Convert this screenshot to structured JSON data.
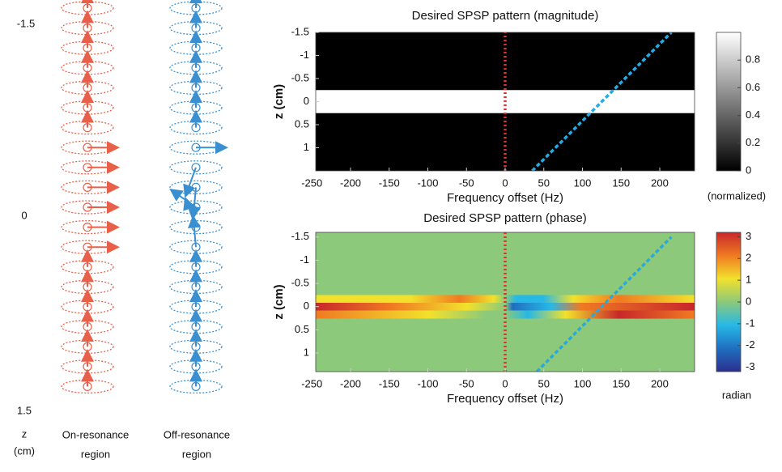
{
  "diagram": {
    "z_labels": [
      "-1.5",
      "0",
      "1.5"
    ],
    "axis_label": [
      "z",
      "(cm)"
    ],
    "columns": [
      {
        "label": [
          "On-resonance",
          "region"
        ],
        "color": "#e8604a"
      },
      {
        "label": [
          "Off-resonance",
          "region"
        ],
        "color": "#3a8fd0"
      }
    ]
  },
  "chart_data": [
    {
      "type": "heatmap",
      "title": "Desired SPSP pattern (magnitude)",
      "xlabel": "Frequency offset (Hz)",
      "ylabel": "z (cm)",
      "xlim": [
        -245,
        245
      ],
      "xticks": [
        -250,
        -200,
        -150,
        -100,
        -50,
        0,
        50,
        100,
        150,
        200
      ],
      "ylim": [
        1.5,
        -1.5
      ],
      "yticks": [
        -1.5,
        -1,
        -0.5,
        0,
        0.5,
        1
      ],
      "background_value": 0,
      "band_value": 1,
      "band_z": [
        -0.25,
        0.25
      ],
      "colormap": [
        "#000000",
        "#ffffff"
      ],
      "clim": [
        0,
        1
      ],
      "cticks": [
        0,
        0.2,
        0.4,
        0.6,
        0.8
      ],
      "clabel": "(normalized)",
      "series": [
        {
          "color": "#e0302a",
          "x": [
            0,
            0
          ],
          "values": [
            1.5,
            -1.5
          ]
        },
        {
          "color": "#27a9e1",
          "x": [
            35,
            215
          ],
          "values": [
            1.5,
            -1.5
          ]
        }
      ]
    },
    {
      "type": "heatmap",
      "title": "Desired SPSP pattern (phase)",
      "xlabel": "Frequency offset (Hz)",
      "ylabel": "z (cm)",
      "xlim": [
        -245,
        245
      ],
      "xticks": [
        -250,
        -200,
        -150,
        -100,
        -50,
        0,
        50,
        100,
        150,
        200
      ],
      "ylim": [
        1.4,
        -1.6
      ],
      "yticks": [
        -1.5,
        -1,
        -0.5,
        0,
        0.5,
        1
      ],
      "background_value": 0,
      "band_z": [
        -0.25,
        0.25
      ],
      "colormap": [
        "#2b2f8f",
        "#1f6fc0",
        "#27b8e6",
        "#8cc97a",
        "#f2e12c",
        "#f07a22",
        "#c7282a"
      ],
      "clim": [
        -3.2,
        3.2
      ],
      "cticks": [
        -3,
        -2,
        -1,
        0,
        1,
        2,
        3
      ],
      "clabel": "radian",
      "series": [
        {
          "color": "#e0302a",
          "x": [
            0,
            0
          ],
          "values": [
            1.4,
            -1.6
          ]
        },
        {
          "color": "#27a9e1",
          "x": [
            35,
            215
          ],
          "values": [
            1.5,
            -1.5
          ]
        }
      ]
    }
  ]
}
